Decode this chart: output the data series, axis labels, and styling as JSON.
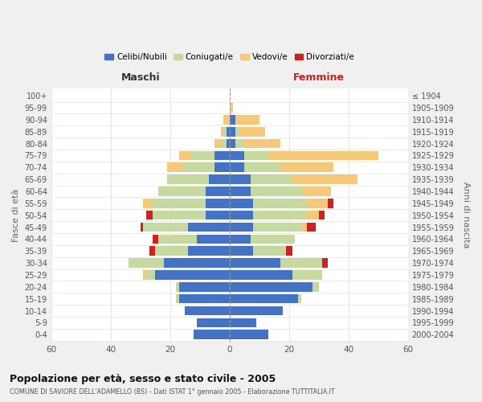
{
  "age_groups": [
    "0-4",
    "5-9",
    "10-14",
    "15-19",
    "20-24",
    "25-29",
    "30-34",
    "35-39",
    "40-44",
    "45-49",
    "50-54",
    "55-59",
    "60-64",
    "65-69",
    "70-74",
    "75-79",
    "80-84",
    "85-89",
    "90-94",
    "95-99",
    "100+"
  ],
  "birth_years": [
    "2000-2004",
    "1995-1999",
    "1990-1994",
    "1985-1989",
    "1980-1984",
    "1975-1979",
    "1970-1974",
    "1965-1969",
    "1960-1964",
    "1955-1959",
    "1950-1954",
    "1945-1949",
    "1940-1944",
    "1935-1939",
    "1930-1934",
    "1925-1929",
    "1920-1924",
    "1915-1919",
    "1910-1914",
    "1905-1909",
    "≤ 1904"
  ],
  "colors": {
    "celibi": "#4472c4",
    "coniugati": "#c5d9a0",
    "vedovi": "#f5c97a",
    "divorziati": "#cc2222"
  },
  "maschi": {
    "celibi": [
      12,
      11,
      15,
      17,
      17,
      25,
      22,
      14,
      11,
      14,
      8,
      8,
      8,
      7,
      5,
      5,
      1,
      1,
      0,
      0,
      0
    ],
    "coniugati": [
      0,
      0,
      0,
      1,
      1,
      3,
      12,
      11,
      13,
      15,
      18,
      18,
      16,
      14,
      11,
      8,
      2,
      1,
      0,
      0,
      0
    ],
    "vedovi": [
      0,
      0,
      0,
      0,
      0,
      1,
      0,
      0,
      0,
      0,
      0,
      3,
      0,
      0,
      5,
      4,
      2,
      1,
      2,
      0,
      0
    ],
    "divorziati": [
      0,
      0,
      0,
      0,
      0,
      0,
      0,
      2,
      2,
      1,
      2,
      0,
      0,
      0,
      0,
      0,
      0,
      0,
      0,
      0,
      0
    ]
  },
  "femmine": {
    "celibi": [
      13,
      9,
      18,
      23,
      28,
      21,
      17,
      8,
      7,
      8,
      8,
      8,
      7,
      7,
      5,
      5,
      2,
      2,
      2,
      0,
      0
    ],
    "coniugati": [
      0,
      0,
      0,
      1,
      2,
      10,
      14,
      11,
      15,
      16,
      18,
      18,
      17,
      14,
      12,
      8,
      3,
      1,
      0,
      0,
      0
    ],
    "vedovi": [
      0,
      0,
      0,
      0,
      0,
      0,
      0,
      0,
      0,
      2,
      4,
      7,
      10,
      22,
      18,
      37,
      12,
      9,
      8,
      1,
      0
    ],
    "divorziati": [
      0,
      0,
      0,
      0,
      0,
      0,
      2,
      2,
      0,
      3,
      2,
      2,
      0,
      0,
      0,
      0,
      0,
      0,
      0,
      0,
      0
    ]
  },
  "xlim": 60,
  "title": "Popolazione per età, sesso e stato civile - 2005",
  "subtitle": "COMUNE DI SAVIORE DELL'ADAMELLO (BS) - Dati ISTAT 1° gennaio 2005 - Elaborazione TUTTITALIA.IT",
  "ylabel_left": "Fasce di età",
  "ylabel_right": "Anni di nascita",
  "legend_labels": [
    "Celibi/Nubili",
    "Coniugati/e",
    "Vedovi/e",
    "Divorziati/e"
  ],
  "bg_color": "#f0f0f0",
  "plot_bg": "#ffffff"
}
